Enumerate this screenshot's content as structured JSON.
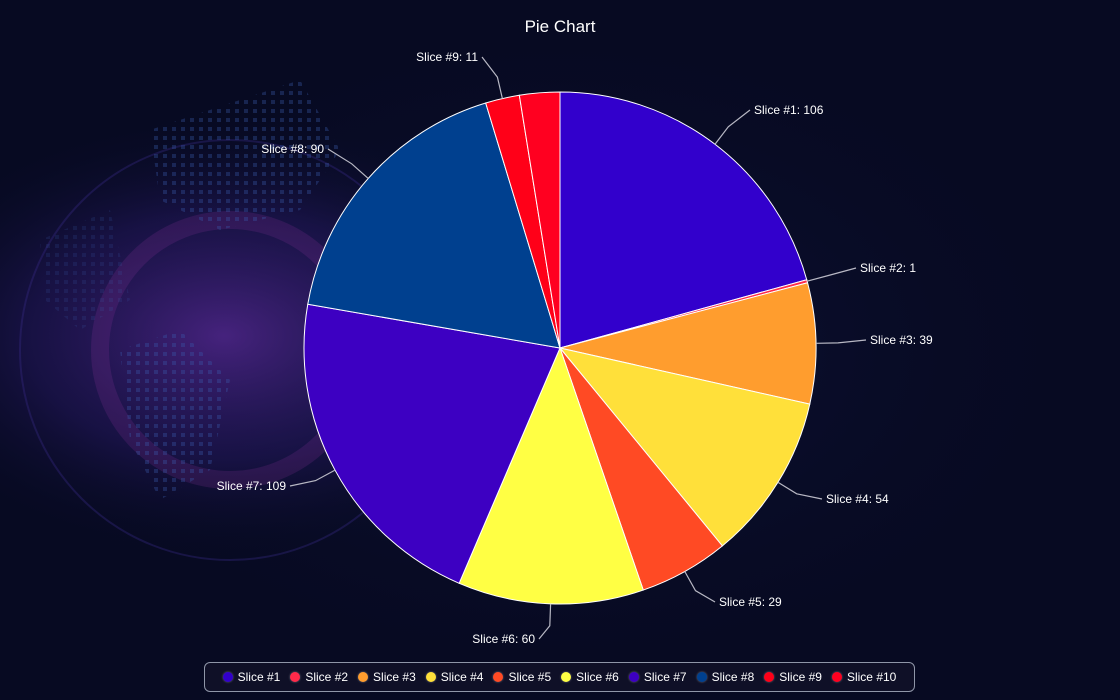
{
  "chart_data": {
    "type": "pie",
    "title": "Pie Chart",
    "legend": "bottom",
    "slices": [
      {
        "name": "Slice #1",
        "label": "Slice #1: 106",
        "value": 106,
        "color": "#3200cc"
      },
      {
        "name": "Slice #2",
        "label": "Slice #2: 1",
        "value": 1,
        "color": "#ff2a4a"
      },
      {
        "name": "Slice #3",
        "label": "Slice #3: 39",
        "value": 39,
        "color": "#ff9d2e"
      },
      {
        "name": "Slice #4",
        "label": "Slice #4: 54",
        "value": 54,
        "color": "#ffe03a"
      },
      {
        "name": "Slice #5",
        "label": "Slice #5: 29",
        "value": 29,
        "color": "#ff4a24"
      },
      {
        "name": "Slice #6",
        "label": "Slice #6: 60",
        "value": 60,
        "color": "#ffff44"
      },
      {
        "name": "Slice #7",
        "label": "Slice #7: 109",
        "value": 109,
        "color": "#3d00c2"
      },
      {
        "name": "Slice #8",
        "label": "Slice #8: 90",
        "value": 90,
        "color": "#00408f"
      },
      {
        "name": "Slice #9",
        "label": "Slice #9: 11",
        "value": 11,
        "color": "#ff0018"
      },
      {
        "name": "Slice #10",
        "label": "",
        "value": 13,
        "color": "#ff0020"
      }
    ]
  }
}
